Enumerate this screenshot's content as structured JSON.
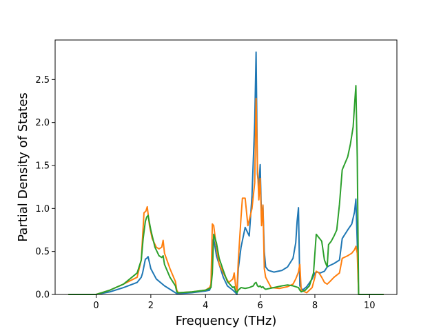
{
  "chart_data": {
    "type": "line",
    "title": "",
    "xlabel": "Frequency (THz)",
    "ylabel": "Partial Density of States",
    "xlim": [
      -1.0,
      10.5
    ],
    "ylim": [
      0.0,
      2.96
    ],
    "xticks": [
      0,
      2,
      4,
      6,
      8,
      10
    ],
    "yticks": [
      0.0,
      0.5,
      1.0,
      1.5,
      2.0,
      2.5
    ],
    "xtick_labels": [
      "0",
      "2",
      "4",
      "6",
      "8",
      "10"
    ],
    "ytick_labels": [
      "0.0",
      "0.5",
      "1.0",
      "1.5",
      "2.0",
      "2.5"
    ],
    "grid": false,
    "legend": false,
    "series": [
      {
        "color": "#1f77b4",
        "x": [
          -1.0,
          0.0,
          0.5,
          1.0,
          1.5,
          1.65,
          1.7,
          1.8,
          1.85,
          1.9,
          2.0,
          2.2,
          2.5,
          2.8,
          2.95,
          3.0,
          3.5,
          4.0,
          4.15,
          4.2,
          4.25,
          4.3,
          4.4,
          4.55,
          4.65,
          4.8,
          5.0,
          5.1,
          5.15,
          5.2,
          5.3,
          5.45,
          5.6,
          5.7,
          5.8,
          5.85,
          5.9,
          5.95,
          6.0,
          6.05,
          6.1,
          6.15,
          6.2,
          6.3,
          6.5,
          6.8,
          7.0,
          7.2,
          7.3,
          7.35,
          7.4,
          7.45,
          7.55,
          7.7,
          7.9,
          8.0,
          8.1,
          8.2,
          8.35,
          8.45,
          8.5,
          8.7,
          8.9,
          9.0,
          9.2,
          9.35,
          9.45,
          9.5,
          9.55,
          9.6,
          10.0,
          10.5
        ],
        "y": [
          0.0,
          0.0,
          0.03,
          0.08,
          0.14,
          0.2,
          0.25,
          0.41,
          0.42,
          0.44,
          0.3,
          0.18,
          0.1,
          0.04,
          0.01,
          0.01,
          0.02,
          0.04,
          0.05,
          0.1,
          0.6,
          0.65,
          0.45,
          0.3,
          0.2,
          0.1,
          0.05,
          0.02,
          0.0,
          0.3,
          0.55,
          0.78,
          0.68,
          1.15,
          2.0,
          2.82,
          1.4,
          1.25,
          1.51,
          0.85,
          1.04,
          0.5,
          0.32,
          0.28,
          0.26,
          0.28,
          0.32,
          0.42,
          0.6,
          0.85,
          1.01,
          0.1,
          0.05,
          0.09,
          0.18,
          0.25,
          0.26,
          0.25,
          0.27,
          0.32,
          0.33,
          0.36,
          0.4,
          0.65,
          0.75,
          0.82,
          0.96,
          1.11,
          0.6,
          0.0,
          0.0,
          0.0
        ]
      },
      {
        "color": "#ff7f0e",
        "x": [
          -1.0,
          0.0,
          0.5,
          1.0,
          1.5,
          1.65,
          1.75,
          1.82,
          1.87,
          1.95,
          2.05,
          2.2,
          2.3,
          2.4,
          2.45,
          2.5,
          2.7,
          2.9,
          2.95,
          3.0,
          3.5,
          4.0,
          4.15,
          4.2,
          4.25,
          4.3,
          4.4,
          4.5,
          4.7,
          4.85,
          5.0,
          5.05,
          5.1,
          5.15,
          5.2,
          5.3,
          5.35,
          5.45,
          5.55,
          5.7,
          5.8,
          5.85,
          5.9,
          5.95,
          6.0,
          6.05,
          6.1,
          6.15,
          6.2,
          6.4,
          6.7,
          7.0,
          7.2,
          7.3,
          7.4,
          7.45,
          7.5,
          7.7,
          7.9,
          8.0,
          8.05,
          8.15,
          8.25,
          8.35,
          8.45,
          8.55,
          8.7,
          8.9,
          9.0,
          9.2,
          9.35,
          9.45,
          9.5,
          9.55,
          9.6,
          10.0,
          10.5
        ],
        "y": [
          0.0,
          0.0,
          0.05,
          0.12,
          0.2,
          0.4,
          0.95,
          0.97,
          1.02,
          0.8,
          0.65,
          0.55,
          0.53,
          0.55,
          0.63,
          0.48,
          0.3,
          0.15,
          0.05,
          0.02,
          0.03,
          0.05,
          0.08,
          0.12,
          0.82,
          0.8,
          0.55,
          0.35,
          0.22,
          0.14,
          0.18,
          0.25,
          0.1,
          0.05,
          0.4,
          0.9,
          1.12,
          1.12,
          0.8,
          1.0,
          1.3,
          2.28,
          1.5,
          1.1,
          1.35,
          0.8,
          1.04,
          0.3,
          0.2,
          0.08,
          0.07,
          0.09,
          0.12,
          0.18,
          0.26,
          0.35,
          0.05,
          0.02,
          0.08,
          0.2,
          0.27,
          0.25,
          0.2,
          0.14,
          0.12,
          0.15,
          0.2,
          0.25,
          0.42,
          0.45,
          0.48,
          0.52,
          0.56,
          0.48,
          0.0,
          0.0,
          0.0
        ]
      },
      {
        "color": "#2ca02c",
        "x": [
          -1.0,
          0.0,
          0.5,
          1.0,
          1.5,
          1.65,
          1.72,
          1.8,
          1.85,
          1.9,
          2.0,
          2.15,
          2.3,
          2.4,
          2.45,
          2.5,
          2.7,
          2.9,
          2.95,
          3.0,
          3.5,
          4.0,
          4.15,
          4.2,
          4.25,
          4.3,
          4.4,
          4.5,
          4.65,
          4.8,
          5.0,
          5.05,
          5.1,
          5.15,
          5.2,
          5.3,
          5.45,
          5.6,
          5.75,
          5.8,
          5.85,
          5.9,
          5.95,
          6.0,
          6.05,
          6.1,
          6.15,
          6.2,
          6.5,
          6.8,
          7.0,
          7.2,
          7.3,
          7.4,
          7.45,
          7.5,
          7.65,
          7.8,
          7.95,
          8.05,
          8.15,
          8.25,
          8.35,
          8.45,
          8.5,
          8.6,
          8.7,
          8.8,
          8.9,
          9.0,
          9.2,
          9.3,
          9.4,
          9.45,
          9.5,
          9.55,
          9.6,
          10.0,
          10.5
        ],
        "y": [
          0.0,
          0.0,
          0.05,
          0.12,
          0.25,
          0.4,
          0.65,
          0.85,
          0.9,
          0.92,
          0.75,
          0.55,
          0.45,
          0.43,
          0.45,
          0.35,
          0.2,
          0.1,
          0.03,
          0.02,
          0.03,
          0.05,
          0.07,
          0.08,
          0.25,
          0.7,
          0.6,
          0.42,
          0.28,
          0.15,
          0.08,
          0.09,
          0.04,
          0.02,
          0.05,
          0.08,
          0.07,
          0.08,
          0.1,
          0.13,
          0.14,
          0.1,
          0.09,
          0.1,
          0.08,
          0.09,
          0.07,
          0.06,
          0.08,
          0.1,
          0.11,
          0.1,
          0.09,
          0.08,
          0.05,
          0.03,
          0.05,
          0.1,
          0.25,
          0.7,
          0.66,
          0.62,
          0.4,
          0.32,
          0.58,
          0.62,
          0.68,
          0.75,
          1.05,
          1.45,
          1.6,
          1.75,
          1.95,
          2.2,
          2.43,
          1.6,
          0.0,
          0.0,
          0.0
        ]
      }
    ]
  }
}
